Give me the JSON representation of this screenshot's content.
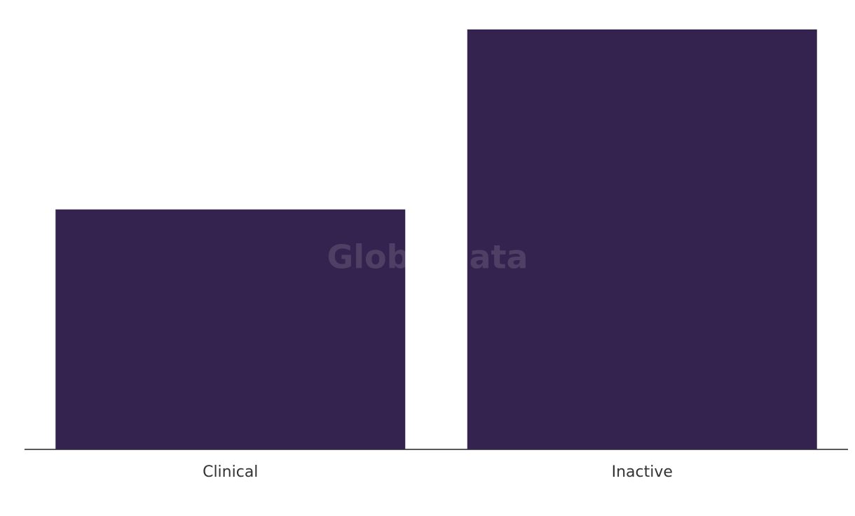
{
  "chart_data": {
    "type": "bar",
    "categories": [
      "Clinical",
      "Inactive"
    ],
    "values": [
      4,
      7
    ],
    "color": "#35234f",
    "watermark": "GlobalData"
  }
}
